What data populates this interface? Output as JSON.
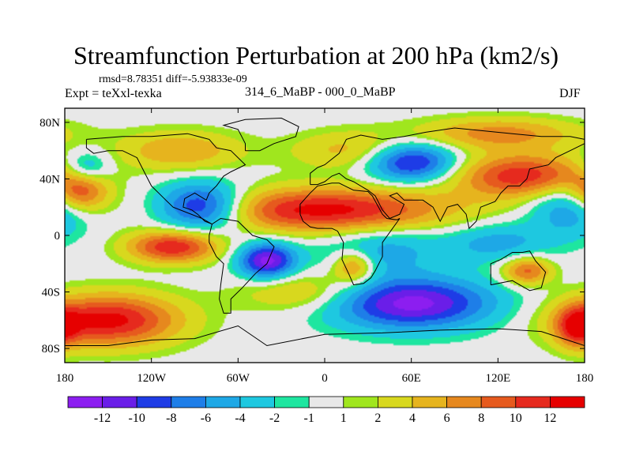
{
  "title": "Streamfunction Perturbation at 200 hPa (km2/s)",
  "stats": {
    "rmsd_label": "rmsd=",
    "rmsd": "8.78351",
    "diff_label": "diff=",
    "diff": "-5.93833e-09"
  },
  "experiment": "Expt = teXxl-texka",
  "comparison": "314_6_MaBP - 000_0_MaBP",
  "season": "DJF",
  "axes": {
    "x_ticks": [
      "180",
      "120W",
      "60W",
      "0",
      "60E",
      "120E",
      "180"
    ],
    "y_ticks": [
      "80N",
      "40N",
      "0",
      "40S",
      "80S"
    ]
  },
  "colorbar": {
    "labels": [
      "-12",
      "-10",
      "-8",
      "-6",
      "-4",
      "-2",
      "-1",
      "1",
      "2",
      "4",
      "6",
      "8",
      "10",
      "12"
    ],
    "colors": [
      "#8c1ef0",
      "#6a1ee8",
      "#1e3ce6",
      "#1e7ee8",
      "#1ea8e6",
      "#1ec8e0",
      "#1ee6a0",
      "#e8e8e8",
      "#a0e61e",
      "#d8d81e",
      "#e6b41e",
      "#e6881e",
      "#e65a1e",
      "#e62a1e",
      "#e60000"
    ]
  },
  "chart_data": {
    "type": "heatmap",
    "title": "Streamfunction Perturbation at 200 hPa (km2/s)",
    "projection": "cylindrical-equidistant",
    "xlim": [
      -180,
      180
    ],
    "ylim": [
      -90,
      90
    ],
    "levels": [
      -12,
      -10,
      -8,
      -6,
      -4,
      -2,
      -1,
      1,
      2,
      4,
      6,
      8,
      10,
      12
    ],
    "features": [
      {
        "type": "low",
        "lon": -85,
        "lat": 20,
        "value": -13,
        "slon": 22,
        "slat": 12
      },
      {
        "type": "low",
        "lon": -40,
        "lat": -18,
        "value": -13,
        "slon": 14,
        "slat": 9
      },
      {
        "type": "low",
        "lon": 60,
        "lat": -48,
        "value": -13,
        "slon": 40,
        "slat": 13
      },
      {
        "type": "low",
        "lon": 60,
        "lat": 52,
        "value": -12,
        "slon": 22,
        "slat": 10
      },
      {
        "type": "low",
        "lon": 170,
        "lat": 22,
        "value": -7,
        "slon": 20,
        "slat": 15
      },
      {
        "type": "low",
        "lon": -165,
        "lat": 48,
        "value": -6,
        "slon": 12,
        "slat": 8
      },
      {
        "type": "low",
        "lon": 40,
        "lat": -10,
        "value": -5,
        "slon": 30,
        "slat": 12
      },
      {
        "type": "low",
        "lon": 120,
        "lat": -5,
        "value": -5,
        "slon": 25,
        "slat": 10
      },
      {
        "type": "high",
        "lon": 0,
        "lat": 18,
        "value": 13,
        "slon": 60,
        "slat": 11
      },
      {
        "type": "high",
        "lon": -150,
        "lat": -60,
        "value": 13,
        "slon": 35,
        "slat": 13
      },
      {
        "type": "high",
        "lon": -105,
        "lat": -8,
        "value": 12,
        "slon": 22,
        "slat": 8
      },
      {
        "type": "high",
        "lon": 140,
        "lat": 42,
        "value": 12,
        "slon": 35,
        "slat": 11
      },
      {
        "type": "high",
        "lon": -170,
        "lat": 30,
        "value": 10,
        "slon": 14,
        "slat": 10
      },
      {
        "type": "high",
        "lon": 175,
        "lat": -65,
        "value": 9,
        "slon": 10,
        "slat": 10
      },
      {
        "type": "high",
        "lon": 140,
        "lat": -25,
        "value": 9,
        "slon": 12,
        "slat": 7
      },
      {
        "type": "high",
        "lon": 20,
        "lat": -22,
        "value": 8,
        "slon": 10,
        "slat": 8
      },
      {
        "type": "high",
        "lon": -100,
        "lat": 60,
        "value": 6,
        "slon": 30,
        "slat": 10
      },
      {
        "type": "high",
        "lon": 120,
        "lat": 72,
        "value": 7,
        "slon": 40,
        "slat": 8
      },
      {
        "type": "high",
        "lon": -15,
        "lat": -40,
        "value": 5,
        "slon": 30,
        "slat": 10
      },
      {
        "type": "high",
        "lon": 20,
        "lat": 60,
        "value": 5,
        "slon": 30,
        "slat": 10
      }
    ],
    "coastlines": [
      [
        [
          -165,
          68
        ],
        [
          -140,
          70
        ],
        [
          -120,
          70
        ],
        [
          -95,
          72
        ],
        [
          -80,
          68
        ],
        [
          -75,
          62
        ],
        [
          -65,
          60
        ],
        [
          -55,
          50
        ],
        [
          -65,
          45
        ],
        [
          -70,
          42
        ],
        [
          -75,
          35
        ],
        [
          -80,
          30
        ],
        [
          -82,
          25
        ],
        [
          -90,
          30
        ],
        [
          -97,
          26
        ],
        [
          -98,
          20
        ],
        [
          -92,
          18
        ],
        [
          -88,
          15
        ],
        [
          -83,
          10
        ],
        [
          -78,
          8
        ],
        [
          -80,
          0
        ],
        [
          -80,
          -5
        ],
        [
          -75,
          -15
        ],
        [
          -70,
          -20
        ],
        [
          -72,
          -35
        ],
        [
          -73,
          -45
        ],
        [
          -70,
          -55
        ],
        [
          -65,
          -55
        ],
        [
          -65,
          -45
        ],
        [
          -57,
          -37
        ],
        [
          -48,
          -27
        ],
        [
          -40,
          -20
        ],
        [
          -35,
          -8
        ],
        [
          -40,
          -3
        ],
        [
          -50,
          0
        ],
        [
          -60,
          10
        ],
        [
          -72,
          12
        ],
        [
          -78,
          8
        ],
        [
          -85,
          12
        ],
        [
          -95,
          16
        ],
        [
          -105,
          20
        ],
        [
          -110,
          25
        ],
        [
          -115,
          30
        ],
        [
          -120,
          35
        ],
        [
          -125,
          45
        ],
        [
          -130,
          55
        ],
        [
          -140,
          60
        ],
        [
          -150,
          60
        ],
        [
          -160,
          58
        ],
        [
          -165,
          62
        ],
        [
          -165,
          68
        ]
      ],
      [
        [
          -55,
          60
        ],
        [
          -45,
          60
        ],
        [
          -35,
          65
        ],
        [
          -20,
          70
        ],
        [
          -18,
          77
        ],
        [
          -30,
          83
        ],
        [
          -55,
          82
        ],
        [
          -70,
          78
        ],
        [
          -60,
          75
        ],
        [
          -55,
          65
        ],
        [
          -55,
          60
        ]
      ],
      [
        [
          -10,
          36
        ],
        [
          -10,
          44
        ],
        [
          -5,
          48
        ],
        [
          0,
          50
        ],
        [
          5,
          54
        ],
        [
          10,
          58
        ],
        [
          15,
          68
        ],
        [
          25,
          71
        ],
        [
          40,
          68
        ],
        [
          55,
          70
        ],
        [
          70,
          73
        ],
        [
          90,
          76
        ],
        [
          110,
          74
        ],
        [
          130,
          72
        ],
        [
          150,
          70
        ],
        [
          170,
          70
        ],
        [
          180,
          68
        ],
        [
          180,
          65
        ],
        [
          170,
          60
        ],
        [
          160,
          55
        ],
        [
          155,
          50
        ],
        [
          142,
          47
        ],
        [
          140,
          40
        ],
        [
          135,
          35
        ],
        [
          127,
          35
        ],
        [
          122,
          30
        ],
        [
          118,
          24
        ],
        [
          108,
          20
        ],
        [
          105,
          10
        ],
        [
          100,
          5
        ],
        [
          98,
          15
        ],
        [
          92,
          22
        ],
        [
          85,
          20
        ],
        [
          80,
          10
        ],
        [
          75,
          20
        ],
        [
          68,
          25
        ],
        [
          60,
          25
        ],
        [
          55,
          25
        ],
        [
          50,
          30
        ],
        [
          45,
          28
        ],
        [
          55,
          22
        ],
        [
          52,
          15
        ],
        [
          45,
          12
        ],
        [
          40,
          18
        ],
        [
          35,
          28
        ],
        [
          30,
          32
        ],
        [
          25,
          35
        ],
        [
          20,
          38
        ],
        [
          15,
          40
        ],
        [
          10,
          44
        ],
        [
          5,
          42
        ],
        [
          0,
          38
        ],
        [
          -5,
          36
        ],
        [
          -10,
          36
        ]
      ],
      [
        [
          -17,
          15
        ],
        [
          -17,
          22
        ],
        [
          -10,
          30
        ],
        [
          -5,
          35
        ],
        [
          5,
          37
        ],
        [
          10,
          37
        ],
        [
          20,
          32
        ],
        [
          30,
          31
        ],
        [
          33,
          28
        ],
        [
          40,
          15
        ],
        [
          43,
          12
        ],
        [
          50,
          11
        ],
        [
          52,
          12
        ],
        [
          40,
          -5
        ],
        [
          40,
          -15
        ],
        [
          35,
          -25
        ],
        [
          32,
          -30
        ],
        [
          27,
          -34
        ],
        [
          20,
          -35
        ],
        [
          17,
          -28
        ],
        [
          12,
          -17
        ],
        [
          13,
          -5
        ],
        [
          9,
          3
        ],
        [
          5,
          5
        ],
        [
          -5,
          5
        ],
        [
          -10,
          6
        ],
        [
          -15,
          10
        ],
        [
          -17,
          15
        ]
      ],
      [
        [
          115,
          -35
        ],
        [
          115,
          -20
        ],
        [
          122,
          -17
        ],
        [
          130,
          -12
        ],
        [
          137,
          -12
        ],
        [
          142,
          -11
        ],
        [
          146,
          -18
        ],
        [
          153,
          -26
        ],
        [
          150,
          -37
        ],
        [
          142,
          -39
        ],
        [
          135,
          -35
        ],
        [
          130,
          -32
        ],
        [
          115,
          -35
        ]
      ],
      [
        [
          -180,
          -78
        ],
        [
          -150,
          -78
        ],
        [
          -120,
          -74
        ],
        [
          -90,
          -73
        ],
        [
          -60,
          -64
        ],
        [
          -40,
          -78
        ],
        [
          0,
          -70
        ],
        [
          40,
          -69
        ],
        [
          80,
          -67
        ],
        [
          120,
          -66
        ],
        [
          150,
          -68
        ],
        [
          180,
          -78
        ],
        [
          180,
          -90
        ],
        [
          -180,
          -90
        ],
        [
          -180,
          -78
        ]
      ]
    ]
  }
}
